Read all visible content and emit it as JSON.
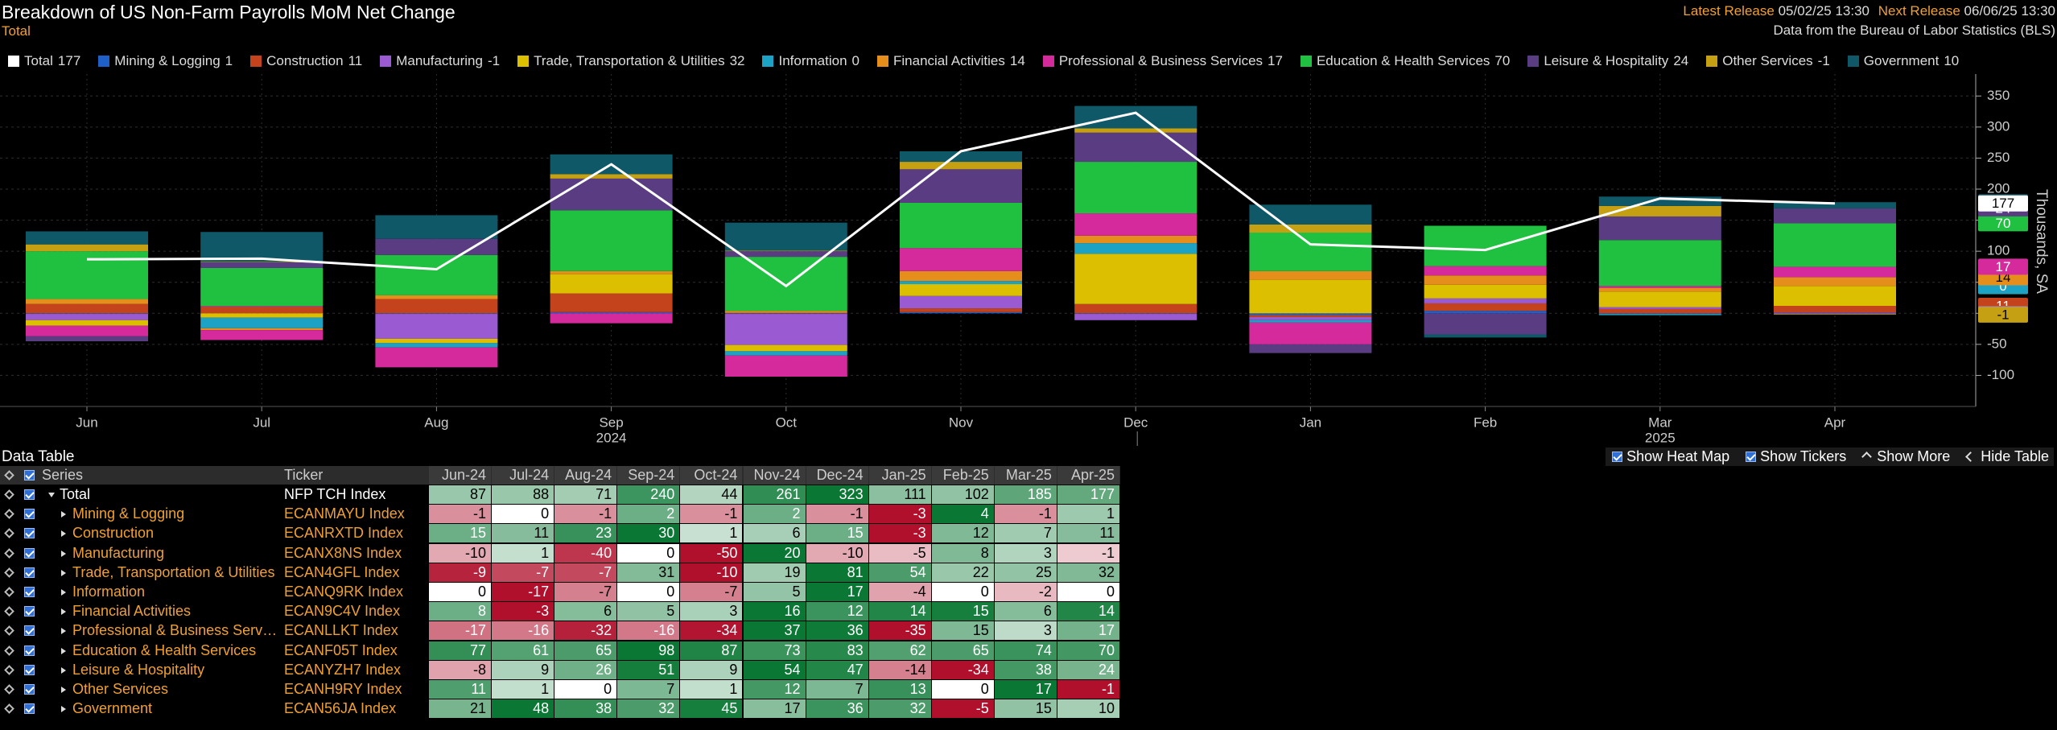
{
  "header": {
    "title": "Breakdown of US Non-Farm Payrolls MoM Net Change",
    "subtitle": "Total",
    "latest_release_label": "Latest Release",
    "latest_release": "05/02/25 13:30",
    "next_release_label": "Next Release",
    "next_release": "06/06/25 13:30",
    "source": "Data from the Bureau of Labor Statistics (BLS)"
  },
  "chart_data": {
    "type": "bar",
    "stacked": true,
    "y_label": "Thousands, SA",
    "categories": [
      "Jun",
      "Jul",
      "Aug",
      "Sep",
      "Oct",
      "Nov",
      "Dec",
      "Jan",
      "Feb",
      "Mar",
      "Apr"
    ],
    "x_groups": [
      "2024",
      "2025"
    ],
    "ylim": [
      -150,
      375
    ],
    "yticks": [
      -100,
      -50,
      0,
      50,
      100,
      150,
      200,
      250,
      300,
      350
    ],
    "grid": true,
    "series": [
      {
        "name": "Total",
        "type": "line",
        "color": "#ffffff",
        "values": [
          87,
          88,
          71,
          240,
          44,
          261,
          323,
          111,
          102,
          185,
          177
        ]
      },
      {
        "name": "Mining & Logging",
        "color": "#1f5fc8",
        "values": [
          -1,
          0,
          -1,
          2,
          -1,
          2,
          -1,
          -3,
          4,
          -1,
          1
        ]
      },
      {
        "name": "Construction",
        "color": "#c4421c",
        "values": [
          15,
          11,
          23,
          30,
          1,
          6,
          15,
          -3,
          12,
          7,
          11
        ]
      },
      {
        "name": "Manufacturing",
        "color": "#9a5ad2",
        "values": [
          -10,
          1,
          -40,
          0,
          -50,
          20,
          -10,
          -5,
          8,
          3,
          -1
        ]
      },
      {
        "name": "Trade, Transportation & Utilities",
        "color": "#dcc000",
        "values": [
          -9,
          -7,
          -7,
          31,
          -10,
          19,
          81,
          54,
          22,
          25,
          32
        ]
      },
      {
        "name": "Information",
        "color": "#1ca2c4",
        "values": [
          0,
          -17,
          -7,
          0,
          -7,
          5,
          17,
          -4,
          0,
          -2,
          0
        ]
      },
      {
        "name": "Financial Activities",
        "color": "#e68e1c",
        "values": [
          8,
          -3,
          6,
          5,
          3,
          16,
          12,
          14,
          15,
          6,
          14
        ]
      },
      {
        "name": "Professional & Business Services",
        "color": "#d42a9c",
        "values": [
          -17,
          -16,
          -32,
          -16,
          -34,
          37,
          36,
          -35,
          15,
          3,
          17
        ]
      },
      {
        "name": "Education & Health Services",
        "color": "#20c040",
        "values": [
          77,
          61,
          65,
          98,
          87,
          73,
          83,
          62,
          65,
          74,
          70
        ]
      },
      {
        "name": "Leisure & Hospitality",
        "color": "#5a3c82",
        "values": [
          -8,
          9,
          26,
          51,
          9,
          54,
          47,
          -14,
          -34,
          38,
          24
        ]
      },
      {
        "name": "Other Services",
        "color": "#c4a012",
        "values": [
          11,
          1,
          0,
          7,
          1,
          12,
          7,
          13,
          0,
          17,
          -1
        ]
      },
      {
        "name": "Government",
        "color": "#0e5868",
        "values": [
          21,
          48,
          38,
          32,
          45,
          17,
          36,
          32,
          -5,
          15,
          10
        ]
      }
    ]
  },
  "table": {
    "title": "Data Table",
    "controls": [
      "Show Heat Map",
      "Show Tickers",
      "Show More",
      "Hide Table"
    ],
    "headers": [
      "Series",
      "Ticker"
    ],
    "columns": [
      "Jun-24",
      "Jul-24",
      "Aug-24",
      "Sep-24",
      "Oct-24",
      "Nov-24",
      "Dec-24",
      "Jan-25",
      "Feb-25",
      "Mar-25",
      "Apr-25"
    ],
    "tickers": [
      "NFP TCH Index",
      "ECANMAYU Index",
      "ECANRXTD Index",
      "ECANX8NS Index",
      "ECAN4GFL Index",
      "ECANQ9RK Index",
      "ECAN9C4V Index",
      "ECANLLKT Index",
      "ECANF05T Index",
      "ECANYZH7 Index",
      "ECANH9RY Index",
      "ECAN56JA Index"
    ]
  }
}
